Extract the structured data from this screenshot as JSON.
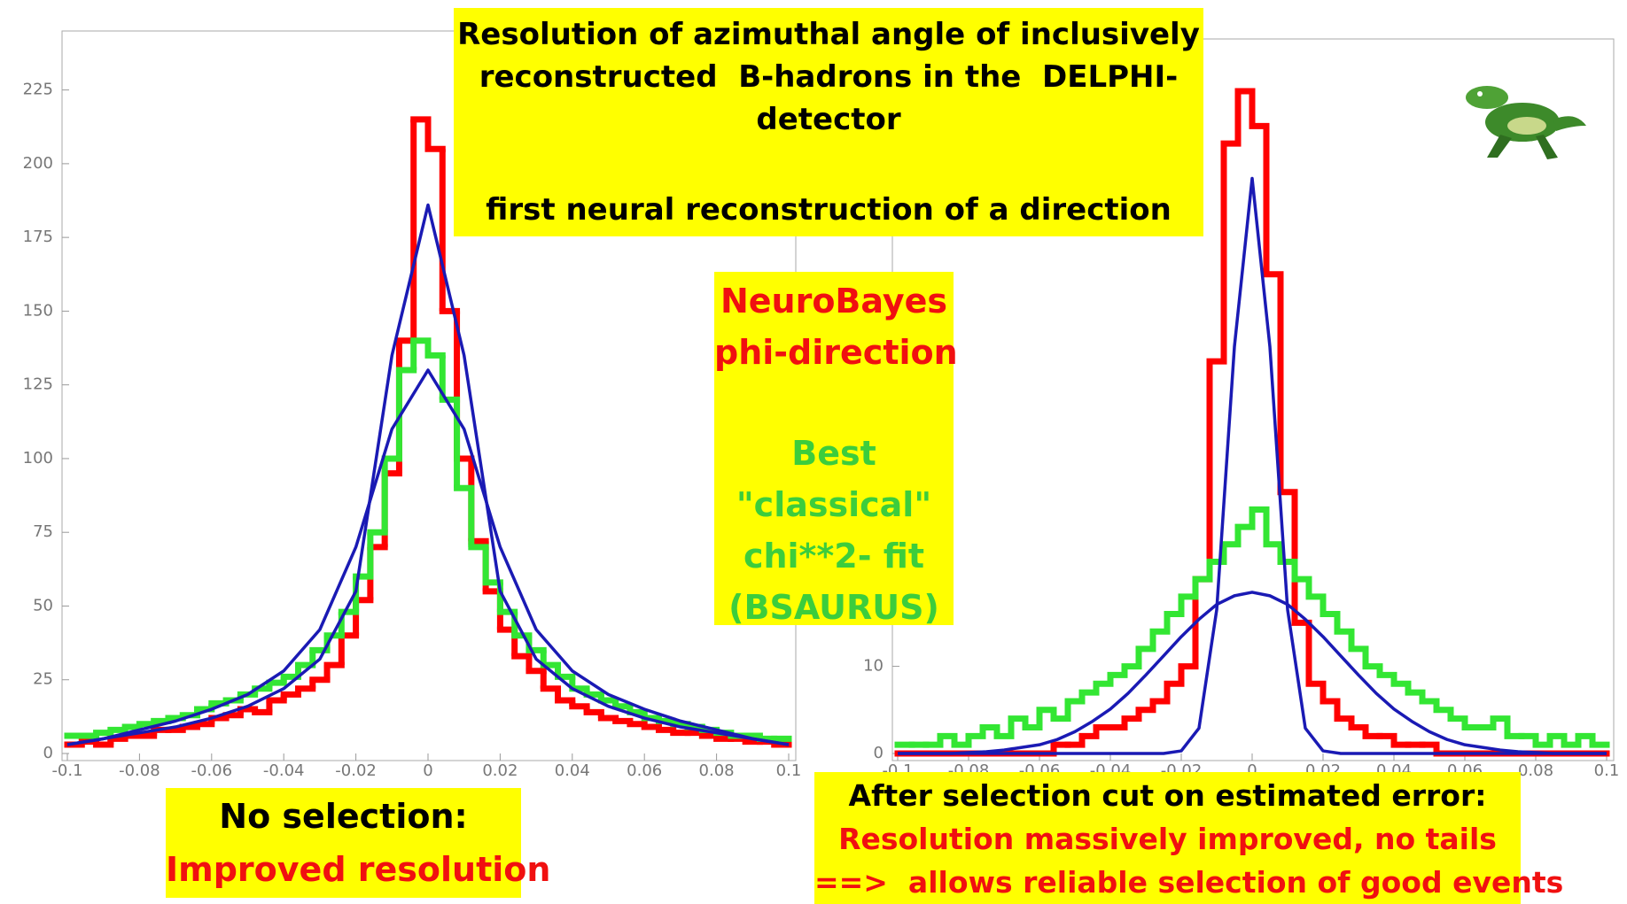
{
  "slide": {
    "title": [
      "Resolution of azimuthal angle of inclusively",
      "reconstructed  B-hadrons in the  DELPHI-",
      "detector"
    ],
    "subtitle": "first neural reconstruction of a direction",
    "legend_box": {
      "red": [
        "NeuroBayes",
        "phi-direction"
      ],
      "green": [
        "Best",
        "\"classical\"",
        "chi**2- fit",
        "(BSAURUS)"
      ]
    },
    "left_caption": [
      "No selection:",
      "Improved resolution"
    ],
    "right_caption": [
      "After selection cut on estimated error:",
      "Resolution massively improved, no tails",
      "==>  allows reliable selection of good events"
    ]
  },
  "chart_data": [
    {
      "type": "histogram",
      "bins": [
        -0.1,
        -0.096,
        -0.092,
        -0.088,
        -0.084,
        -0.08,
        -0.076,
        -0.072,
        -0.068,
        -0.064,
        -0.06,
        -0.056,
        -0.052,
        -0.048,
        -0.044,
        -0.04,
        -0.036,
        -0.032,
        -0.028,
        -0.024,
        -0.02,
        -0.016,
        -0.012,
        -0.008,
        -0.004,
        0,
        0.004,
        0.008,
        0.012,
        0.016,
        0.02,
        0.024,
        0.028,
        0.032,
        0.036,
        0.04,
        0.044,
        0.048,
        0.052,
        0.056,
        0.06,
        0.064,
        0.068,
        0.072,
        0.076,
        0.08,
        0.084,
        0.088,
        0.092,
        0.096,
        0.1
      ],
      "series": [
        {
          "color": "#ff0000",
          "values": [
            3,
            4,
            3,
            5,
            6,
            6,
            8,
            8,
            9,
            10,
            12,
            13,
            15,
            14,
            18,
            20,
            22,
            25,
            30,
            40,
            52,
            70,
            95,
            140,
            215,
            205,
            150,
            100,
            72,
            55,
            42,
            33,
            28,
            22,
            18,
            16,
            14,
            12,
            11,
            10,
            9,
            8,
            7,
            7,
            6,
            5,
            5,
            4,
            4,
            3
          ]
        },
        {
          "color": "#33e633",
          "values": [
            6,
            6,
            7,
            8,
            9,
            10,
            11,
            12,
            13,
            15,
            17,
            18,
            20,
            22,
            24,
            26,
            30,
            35,
            40,
            48,
            60,
            75,
            100,
            130,
            140,
            135,
            120,
            90,
            70,
            58,
            48,
            40,
            35,
            30,
            26,
            22,
            20,
            18,
            16,
            14,
            12,
            11,
            10,
            9,
            8,
            7,
            6,
            6,
            5,
            5
          ]
        }
      ],
      "fits": [
        {
          "color": "#1a1ab4",
          "x": [
            -0.1,
            -0.09,
            -0.08,
            -0.07,
            -0.06,
            -0.05,
            -0.04,
            -0.03,
            -0.02,
            -0.01,
            0,
            0.01,
            0.02,
            0.03,
            0.04,
            0.05,
            0.06,
            0.07,
            0.08,
            0.09,
            0.1
          ],
          "values": [
            3,
            5,
            7,
            9,
            12,
            16,
            22,
            32,
            55,
            135,
            186,
            135,
            55,
            32,
            22,
            16,
            12,
            9,
            7,
            5,
            3
          ]
        },
        {
          "color": "#1a1ab4",
          "x": [
            -0.1,
            -0.09,
            -0.08,
            -0.07,
            -0.06,
            -0.05,
            -0.04,
            -0.03,
            -0.02,
            -0.01,
            0,
            0.01,
            0.02,
            0.03,
            0.04,
            0.05,
            0.06,
            0.07,
            0.08,
            0.09,
            0.1
          ],
          "values": [
            3,
            5,
            8,
            11,
            15,
            20,
            28,
            42,
            70,
            110,
            130,
            110,
            70,
            42,
            28,
            20,
            15,
            11,
            8,
            5,
            3
          ]
        }
      ],
      "xlim": [
        -0.1,
        0.1
      ],
      "ylim": [
        0,
        245
      ],
      "xticks": [
        -0.1,
        -0.08,
        -0.06,
        -0.04,
        -0.02,
        0,
        0.02,
        0.04,
        0.06,
        0.08,
        0.1
      ],
      "yticks": [
        0,
        25,
        50,
        75,
        100,
        125,
        150,
        175,
        200,
        225
      ]
    },
    {
      "type": "histogram",
      "bins": [
        -0.1,
        -0.096,
        -0.092,
        -0.088,
        -0.084,
        -0.08,
        -0.076,
        -0.072,
        -0.068,
        -0.064,
        -0.06,
        -0.056,
        -0.052,
        -0.048,
        -0.044,
        -0.04,
        -0.036,
        -0.032,
        -0.028,
        -0.024,
        -0.02,
        -0.016,
        -0.012,
        -0.008,
        -0.004,
        0,
        0.004,
        0.008,
        0.012,
        0.016,
        0.02,
        0.024,
        0.028,
        0.032,
        0.036,
        0.04,
        0.044,
        0.048,
        0.052,
        0.056,
        0.06,
        0.064,
        0.068,
        0.072,
        0.076,
        0.08,
        0.084,
        0.088,
        0.092,
        0.096,
        0.1
      ],
      "series": [
        {
          "color": "#ff0000",
          "values": [
            0,
            0,
            0,
            0,
            0,
            0,
            0,
            0,
            0,
            0,
            0,
            1,
            1,
            2,
            3,
            3,
            4,
            5,
            6,
            8,
            10,
            20,
            45,
            70,
            76,
            72,
            55,
            30,
            15,
            8,
            6,
            4,
            3,
            2,
            2,
            1,
            1,
            1,
            0,
            0,
            0,
            0,
            0,
            0,
            0,
            0,
            0,
            0,
            0,
            0
          ]
        },
        {
          "color": "#33e633",
          "values": [
            1,
            1,
            1,
            2,
            1,
            2,
            3,
            2,
            4,
            3,
            5,
            4,
            6,
            7,
            8,
            9,
            10,
            12,
            14,
            16,
            18,
            20,
            22,
            24,
            26,
            28,
            24,
            22,
            20,
            18,
            16,
            14,
            12,
            10,
            9,
            8,
            7,
            6,
            5,
            4,
            3,
            3,
            4,
            2,
            2,
            1,
            2,
            1,
            2,
            1
          ]
        }
      ],
      "fits": [
        {
          "color": "#1a1ab4",
          "x": [
            -0.1,
            -0.095,
            -0.09,
            -0.085,
            -0.08,
            -0.075,
            -0.07,
            -0.065,
            -0.06,
            -0.055,
            -0.05,
            -0.045,
            -0.04,
            -0.035,
            -0.03,
            -0.025,
            -0.02,
            -0.015,
            -0.01,
            -0.005,
            0,
            0.005,
            0.01,
            0.015,
            0.02,
            0.025,
            0.03,
            0.035,
            0.04,
            0.045,
            0.05,
            0.055,
            0.06,
            0.065,
            0.07,
            0.075,
            0.08,
            0.085,
            0.09,
            0.095,
            0.1
          ],
          "values": [
            0,
            0,
            0,
            0,
            0,
            0,
            0,
            0,
            0,
            0,
            0,
            0,
            0,
            0,
            0,
            0,
            0.3,
            2.9,
            16.5,
            46.7,
            66,
            46.7,
            16.5,
            2.9,
            0.3,
            0,
            0,
            0,
            0,
            0,
            0,
            0,
            0,
            0,
            0,
            0,
            0,
            0,
            0,
            0,
            0
          ]
        },
        {
          "color": "#1a1ab4",
          "x": [
            -0.1,
            -0.095,
            -0.09,
            -0.085,
            -0.08,
            -0.075,
            -0.07,
            -0.065,
            -0.06,
            -0.055,
            -0.05,
            -0.045,
            -0.04,
            -0.035,
            -0.03,
            -0.025,
            -0.02,
            -0.015,
            -0.01,
            -0.005,
            0,
            0.005,
            0.01,
            0.015,
            0.02,
            0.025,
            0.03,
            0.035,
            0.04,
            0.045,
            0.05,
            0.055,
            0.06,
            0.065,
            0.07,
            0.075,
            0.08,
            0.085,
            0.09,
            0.095,
            0.1
          ],
          "values": [
            0,
            0,
            0,
            0,
            0.1,
            0.2,
            0.4,
            0.7,
            1.0,
            1.6,
            2.5,
            3.7,
            5.1,
            6.9,
            9.0,
            11.2,
            13.4,
            15.4,
            17.1,
            18.1,
            18.5,
            18.1,
            17.1,
            15.4,
            13.4,
            11.2,
            9.0,
            6.9,
            5.1,
            3.7,
            2.5,
            1.6,
            1.0,
            0.7,
            0.4,
            0.2,
            0.1,
            0,
            0,
            0,
            0
          ]
        }
      ],
      "xlim": [
        -0.1,
        0.1
      ],
      "ylim": [
        0,
        82
      ],
      "xticks": [
        -0.1,
        -0.08,
        -0.06,
        -0.04,
        -0.02,
        0,
        0.02,
        0.04,
        0.06,
        0.08,
        0.1
      ],
      "yticks": [
        0,
        10
      ]
    }
  ]
}
